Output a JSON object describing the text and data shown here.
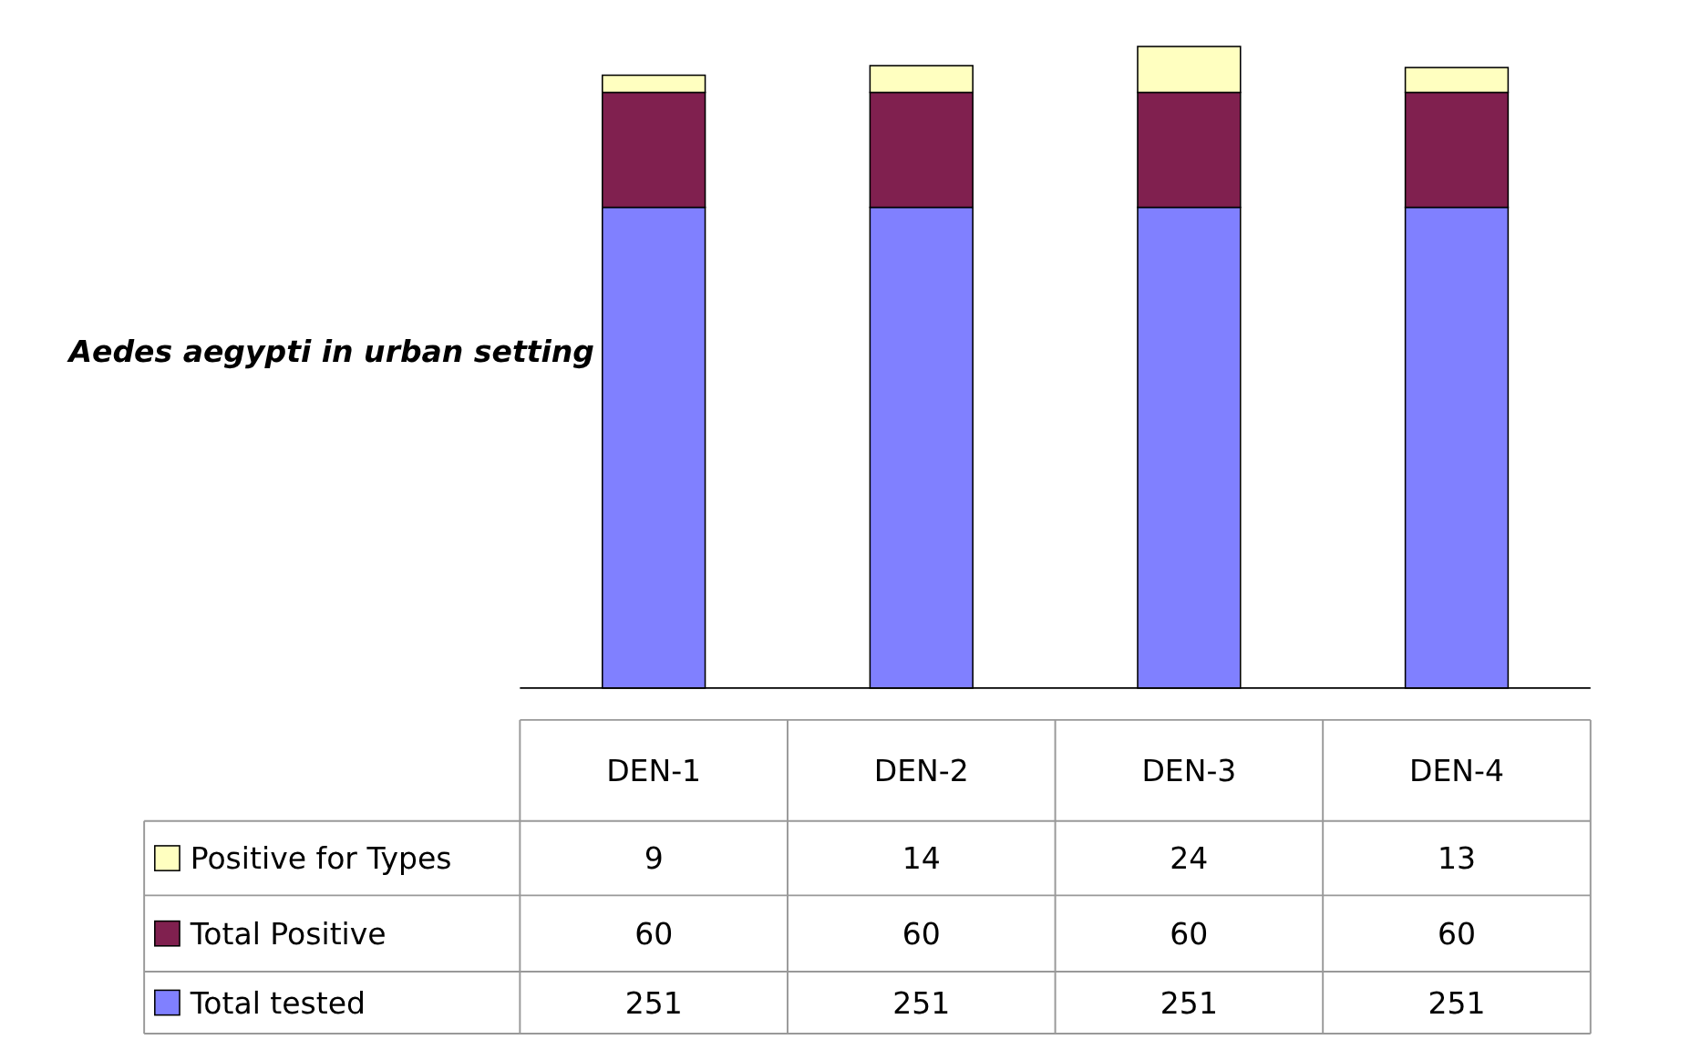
{
  "chart_data": {
    "type": "bar",
    "stacked": true,
    "ylabel": "Aedes aegypti  in urban setting",
    "categories": [
      "DEN-1",
      "DEN-2",
      "DEN-3",
      "DEN-4"
    ],
    "series": [
      {
        "name": "Total tested",
        "color": "#8080ff",
        "values": [
          251,
          251,
          251,
          251
        ]
      },
      {
        "name": "Total Positive",
        "color": "#80204f",
        "values": [
          60,
          60,
          60,
          60
        ]
      },
      {
        "name": "Positive for Types",
        "color": "#ffffc0",
        "values": [
          9,
          14,
          24,
          13
        ]
      }
    ],
    "data_labels": true,
    "legend": "bottom"
  }
}
